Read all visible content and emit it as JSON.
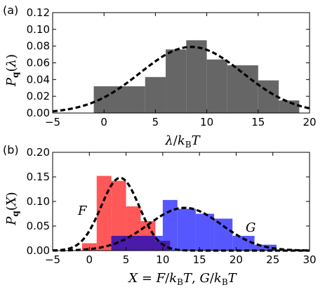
{
  "chart_data": [
    {
      "type": "bar",
      "panel_label": "(a)",
      "xlim": [
        -5,
        20
      ],
      "ylim": [
        0,
        0.12
      ],
      "xticks": [
        "−5",
        "0",
        "5",
        "10",
        "15",
        "20"
      ],
      "yticks": [
        "0.00",
        "0.02",
        "0.04",
        "0.06",
        "0.08",
        "0.10",
        "0.12"
      ],
      "xlabel": {
        "a": "λ",
        "b": "/",
        "c": "k",
        "d": "B",
        "e": "T"
      },
      "ylabel": {
        "a": "P",
        "b": "q",
        "c": "(",
        "d": "λ",
        "e": ")"
      },
      "series": [
        {
          "kind": "histogram",
          "color": "#666666",
          "edges": [
            -1,
            2,
            4,
            6,
            8,
            10,
            12,
            15,
            17,
            19
          ],
          "values": [
            0.032,
            0.032,
            0.043,
            0.076,
            0.087,
            0.064,
            0.057,
            0.039,
            0.015
          ]
        },
        {
          "kind": "gaussian-fit",
          "style": "dashed",
          "color": "#000000",
          "mean": 8.5,
          "sd": 5.0,
          "peak": 0.079
        }
      ]
    },
    {
      "type": "bar",
      "panel_label": "(b)",
      "xlim": [
        -5,
        30
      ],
      "ylim": [
        0,
        0.2
      ],
      "xticks": [
        "−5",
        "0",
        "5",
        "10",
        "15",
        "20",
        "25",
        "30"
      ],
      "yticks": [
        "0.00",
        "0.05",
        "0.10",
        "0.15",
        "0.20"
      ],
      "xlabel": {
        "a": "X",
        "b": " = ",
        "c": "F",
        "d": "/",
        "e": "k",
        "f": "B",
        "g": "T",
        "h": ", ",
        "i": "G",
        "j": "/",
        "k": "k",
        "l": "B",
        "m": "T"
      },
      "ylabel": {
        "a": "P",
        "b": "q",
        "c": "(",
        "d": "X",
        "e": ")"
      },
      "series": [
        {
          "name": "F",
          "kind": "histogram",
          "color": "#ff3b3b",
          "edges": [
            -1,
            1,
            3,
            5,
            7,
            9,
            11
          ],
          "values": [
            0.015,
            0.152,
            0.142,
            0.09,
            0.06,
            0.02
          ]
        },
        {
          "name": "G",
          "kind": "histogram",
          "color": "#3a3aff",
          "edges": [
            3,
            6,
            10,
            12,
            14.5,
            17,
            19.5,
            22.5,
            25.5
          ],
          "values": [
            0.03,
            0.03,
            0.103,
            0.085,
            0.075,
            0.065,
            0.03,
            0.012
          ]
        },
        {
          "name": "F",
          "kind": "gaussian-fit",
          "style": "dashed",
          "color": "#000000",
          "mean": 4.2,
          "sd": 2.6,
          "peak": 0.148
        },
        {
          "name": "G",
          "kind": "gaussian-fit",
          "style": "dashed",
          "color": "#000000",
          "mean": 13.0,
          "sd": 5.0,
          "peak": 0.087
        }
      ]
    }
  ]
}
